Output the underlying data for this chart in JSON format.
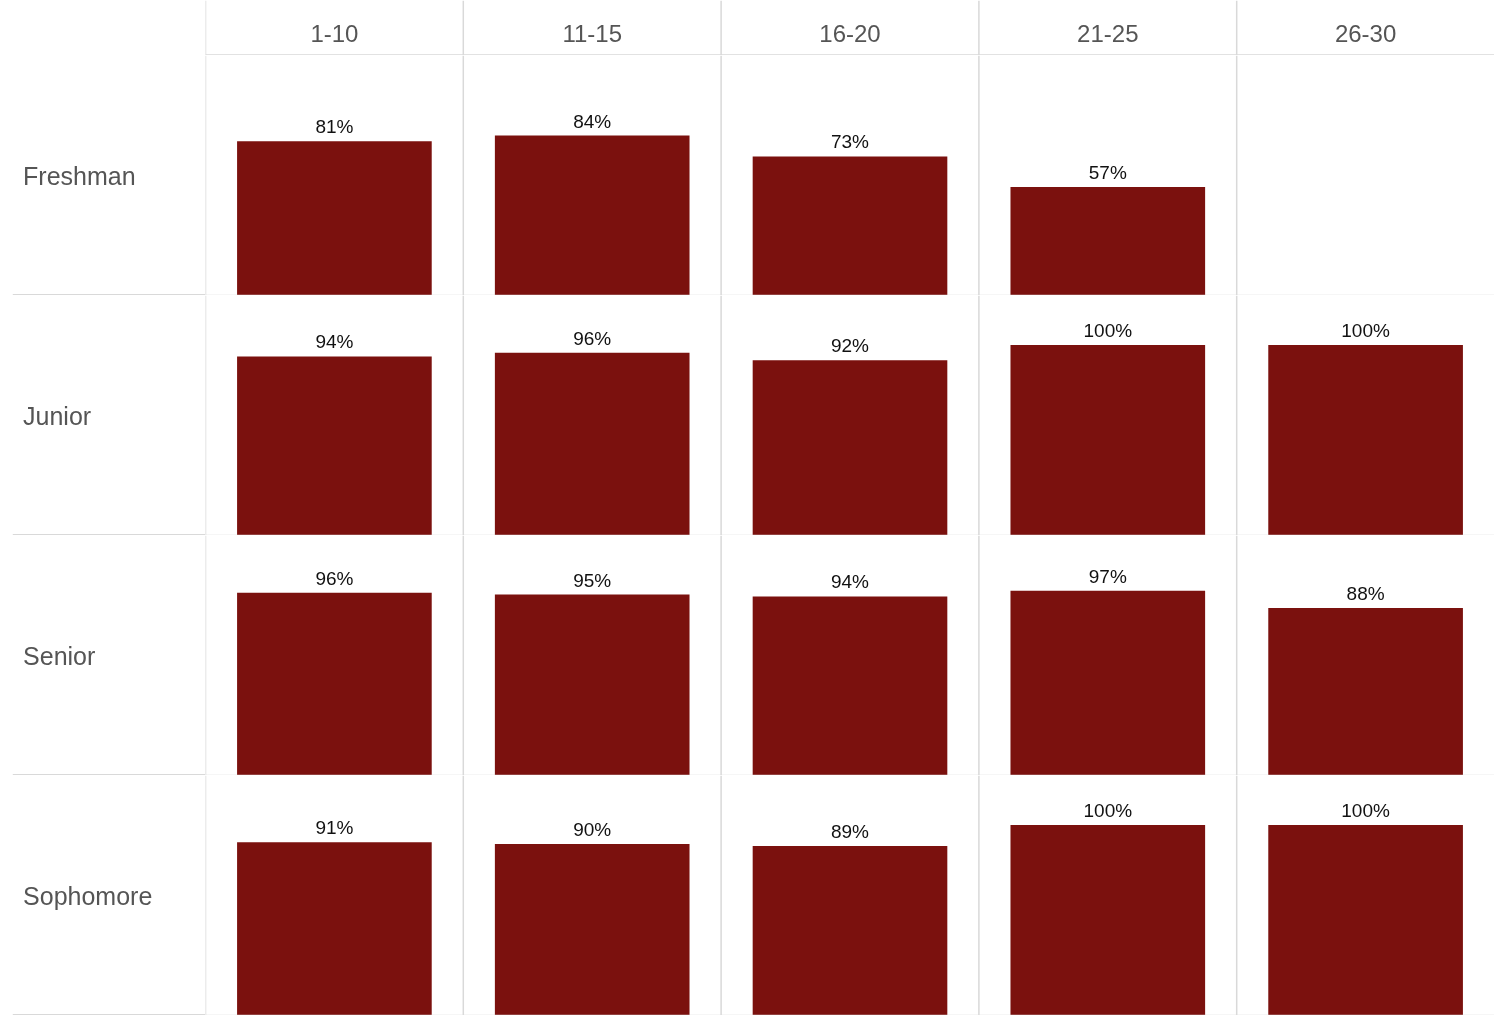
{
  "chart_data": [
    {
      "type": "bar",
      "ylabel": "Freshman",
      "categories": [
        "1-10",
        "11-15",
        "16-20",
        "21-25",
        "26-30"
      ],
      "values": [
        81,
        84,
        73,
        57,
        null
      ],
      "value_labels": [
        "81%",
        "84%",
        "73%",
        "57%",
        null
      ],
      "color": "#7b110e",
      "tick_labels": "x"
    },
    {
      "type": "bar",
      "ylabel": "Junior",
      "categories": [
        null,
        null,
        null,
        null,
        null
      ],
      "values": [
        94,
        96,
        92,
        100,
        100
      ],
      "value_labels": [
        "94%",
        "96%",
        "92%",
        "100%",
        "100%"
      ],
      "color": "#7b110e",
      "tick_labels": false
    },
    {
      "type": "bar",
      "ylabel": "Senior",
      "categories": [
        null,
        null,
        null,
        null,
        null
      ],
      "values": [
        96,
        95,
        94,
        97,
        88
      ],
      "value_labels": [
        "96%",
        "95%",
        "94%",
        "97%",
        "88%"
      ],
      "color": "#7b110e",
      "tick_labels": false
    },
    {
      "type": "bar",
      "ylabel": "Sophomore",
      "categories": [
        null,
        null,
        null,
        null,
        null
      ],
      "values": [
        91,
        90,
        89,
        100,
        100
      ],
      "value_labels": [
        "91%",
        "90%",
        "89%",
        "100%",
        "100%"
      ],
      "color": "#7b110e",
      "tick_labels": false
    }
  ]
}
